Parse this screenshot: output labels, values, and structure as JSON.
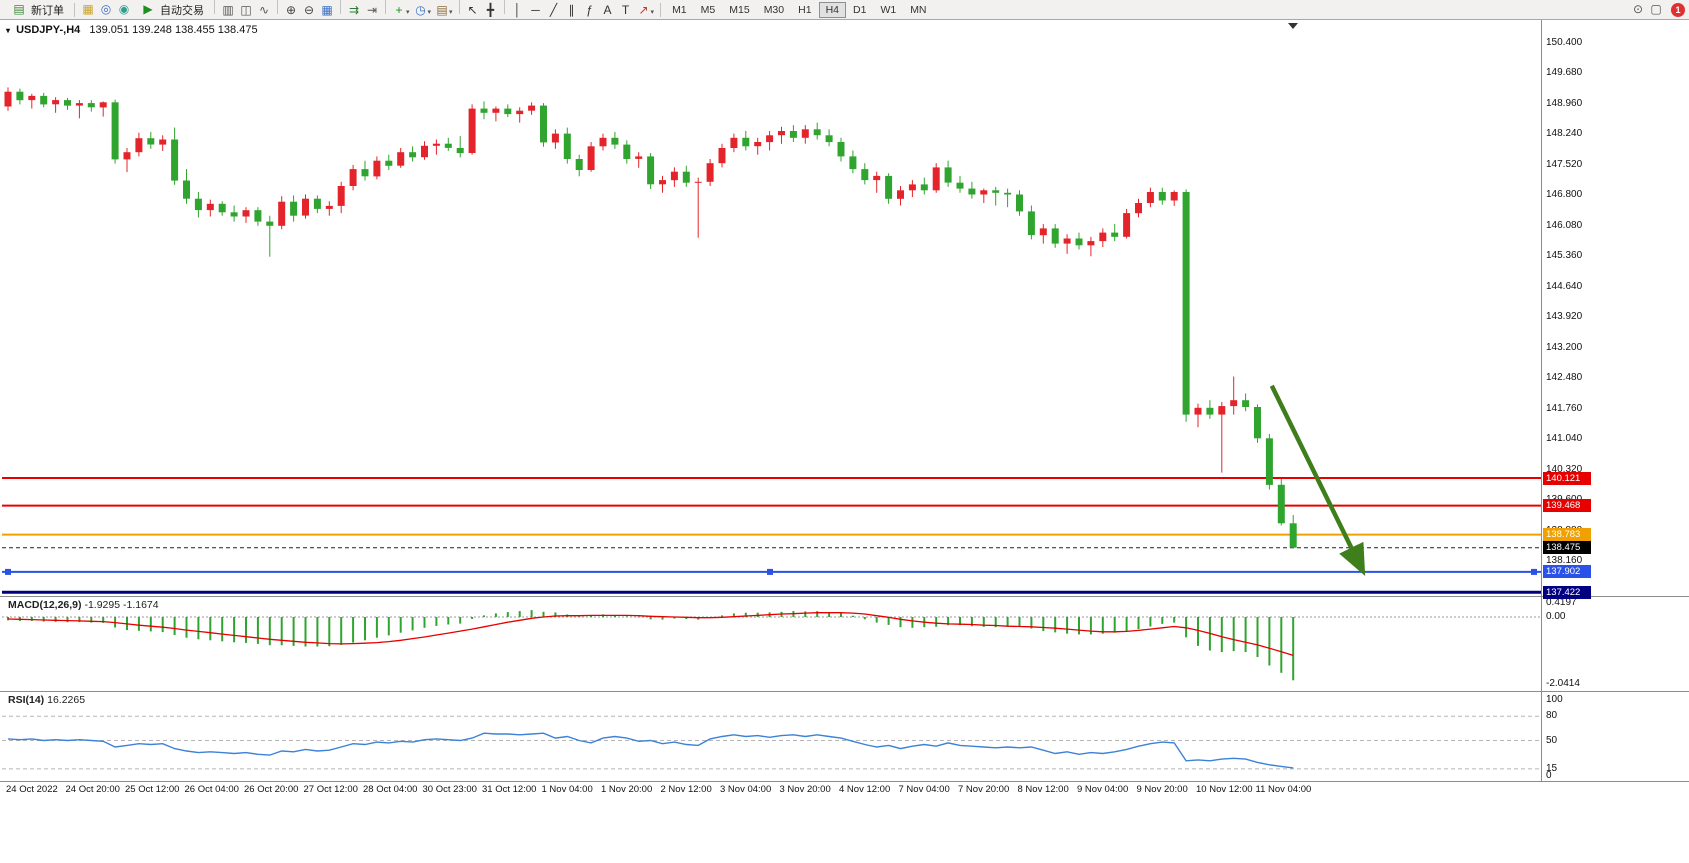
{
  "toolbar": {
    "new_order_label": "新订单",
    "autotrade_label": "自动交易",
    "left_icons": [
      {
        "name": "profiles-icon",
        "glyph": "▦",
        "color": "#c9a227"
      },
      {
        "name": "market-icon",
        "glyph": "◎",
        "color": "#3a6fc4"
      },
      {
        "name": "community-icon",
        "glyph": "◉",
        "color": "#2e9e8f"
      }
    ],
    "main_icons": [
      {
        "name": "bar-chart-icon",
        "glyph": "▥",
        "color": "#555",
        "sep_before": true
      },
      {
        "name": "candlestick-icon",
        "glyph": "◫",
        "color": "#555"
      },
      {
        "name": "line-chart-icon",
        "glyph": "∿",
        "color": "#555"
      },
      {
        "name": "zoom-in-icon",
        "glyph": "⊕",
        "color": "#444",
        "sep_before": true
      },
      {
        "name": "zoom-out-icon",
        "glyph": "⊖",
        "color": "#444"
      },
      {
        "name": "tile-windows-icon",
        "glyph": "▦",
        "color": "#3a6fc4"
      },
      {
        "name": "autoscroll-icon",
        "glyph": "⇉",
        "color": "#2e7d32",
        "sep_before": true
      },
      {
        "name": "chart-shift-icon",
        "glyph": "⇥",
        "color": "#555"
      },
      {
        "name": "indicators-icon",
        "glyph": "+",
        "color": "#1e8e1e",
        "caret": true,
        "sep_before": true
      },
      {
        "name": "periods-icon",
        "glyph": "◷",
        "color": "#3a6fc4",
        "caret": true
      },
      {
        "name": "templates-icon",
        "glyph": "▤",
        "color": "#8a6d3b",
        "caret": true
      },
      {
        "name": "cursor-icon",
        "glyph": "↖",
        "color": "#333",
        "sep_before": true
      },
      {
        "name": "crosshair-icon",
        "glyph": "╋",
        "color": "#333"
      },
      {
        "name": "vertical-line-icon",
        "glyph": "│",
        "color": "#333",
        "sep_before": true
      },
      {
        "name": "horizontal-line-icon",
        "glyph": "─",
        "color": "#333"
      },
      {
        "name": "trendline-icon",
        "glyph": "╱",
        "color": "#333"
      },
      {
        "name": "channel-icon",
        "glyph": "∥",
        "color": "#333"
      },
      {
        "name": "fibonacci-icon",
        "glyph": "ƒ",
        "color": "#333"
      },
      {
        "name": "text-icon",
        "glyph": "A",
        "color": "#333"
      },
      {
        "name": "text-label-icon",
        "glyph": "T",
        "color": "#333"
      },
      {
        "name": "arrows-icon",
        "glyph": "↗",
        "color": "#c23b22",
        "caret": true
      }
    ],
    "timeframes": [
      "M1",
      "M5",
      "M15",
      "M30",
      "H1",
      "H4",
      "D1",
      "W1",
      "MN"
    ],
    "active_timeframe": "H4",
    "right_icons": [
      {
        "name": "search-icon",
        "glyph": "⊙",
        "color": "#555"
      },
      {
        "name": "chat-icon",
        "glyph": "▢",
        "color": "#555"
      }
    ],
    "notification_count": "1"
  },
  "chart": {
    "dropdown_marker": "▾",
    "title_symbol": "USDJPY-,H4",
    "title_ohlc": "139.051 139.248 138.455 138.475"
  },
  "chart_data": {
    "type": "candlestick+indicators",
    "symbol_period": "USDJPY-,H4",
    "current_ohlc": {
      "open": 139.051,
      "high": 139.248,
      "low": 138.455,
      "close": 138.475
    },
    "colors": {
      "bull": "#e3242b",
      "bear": "#2fa42f",
      "macd_hist": "#2fa42f",
      "macd_signal": "#e60000",
      "rsi": "#3b82d9",
      "arrow": "#3e7f1c"
    },
    "price_axis": {
      "max": 150.4,
      "step": 0.72,
      "count": 18
    },
    "candles_per_label": 5,
    "time_labels": [
      "24 Oct 2022",
      "24 Oct 20:00",
      "25 Oct 12:00",
      "26 Oct 04:00",
      "26 Oct 20:00",
      "27 Oct 12:00",
      "28 Oct 04:00",
      "30 Oct 23:00",
      "31 Oct 12:00",
      "1 Nov 04:00",
      "1 Nov 20:00",
      "2 Nov 12:00",
      "3 Nov 04:00",
      "3 Nov 20:00",
      "4 Nov 12:00",
      "7 Nov 04:00",
      "7 Nov 20:00",
      "8 Nov 12:00",
      "9 Nov 04:00",
      "9 Nov 20:00",
      "10 Nov 12:00",
      "11 Nov 04:00"
    ],
    "candles": [
      [
        148.9,
        149.35,
        148.8,
        149.25
      ],
      [
        149.25,
        149.32,
        148.95,
        149.05
      ],
      [
        149.05,
        149.2,
        148.85,
        149.15
      ],
      [
        149.15,
        149.22,
        148.88,
        148.95
      ],
      [
        148.95,
        149.12,
        148.75,
        149.05
      ],
      [
        149.05,
        149.1,
        148.82,
        148.92
      ],
      [
        148.92,
        149.05,
        148.62,
        148.98
      ],
      [
        148.98,
        149.05,
        148.78,
        148.88
      ],
      [
        148.88,
        149.02,
        148.66,
        149.0
      ],
      [
        149.0,
        149.06,
        147.55,
        147.65
      ],
      [
        147.65,
        147.92,
        147.35,
        147.82
      ],
      [
        147.82,
        148.28,
        147.72,
        148.15
      ],
      [
        148.15,
        148.3,
        147.9,
        148.0
      ],
      [
        148.0,
        148.22,
        147.85,
        148.12
      ],
      [
        148.12,
        148.4,
        147.05,
        147.15
      ],
      [
        147.15,
        147.42,
        146.6,
        146.72
      ],
      [
        146.72,
        146.88,
        146.28,
        146.45
      ],
      [
        146.45,
        146.7,
        146.3,
        146.6
      ],
      [
        146.6,
        146.66,
        146.32,
        146.4
      ],
      [
        146.4,
        146.56,
        146.18,
        146.3
      ],
      [
        146.3,
        146.52,
        146.15,
        146.45
      ],
      [
        146.45,
        146.52,
        146.08,
        146.18
      ],
      [
        146.18,
        146.32,
        145.35,
        146.08
      ],
      [
        146.08,
        146.78,
        146.0,
        146.65
      ],
      [
        146.65,
        146.8,
        146.18,
        146.32
      ],
      [
        146.32,
        146.82,
        146.25,
        146.72
      ],
      [
        146.72,
        146.8,
        146.38,
        146.48
      ],
      [
        146.48,
        146.66,
        146.32,
        146.55
      ],
      [
        146.55,
        147.12,
        146.38,
        147.02
      ],
      [
        147.02,
        147.52,
        146.92,
        147.42
      ],
      [
        147.42,
        147.62,
        147.15,
        147.25
      ],
      [
        147.25,
        147.72,
        147.18,
        147.62
      ],
      [
        147.62,
        147.76,
        147.4,
        147.5
      ],
      [
        147.5,
        147.92,
        147.45,
        147.82
      ],
      [
        147.82,
        147.96,
        147.6,
        147.7
      ],
      [
        147.7,
        148.08,
        147.64,
        147.97
      ],
      [
        147.97,
        148.12,
        147.76,
        148.02
      ],
      [
        148.02,
        148.16,
        147.85,
        147.92
      ],
      [
        147.92,
        148.2,
        147.7,
        147.8
      ],
      [
        147.8,
        148.95,
        147.76,
        148.85
      ],
      [
        148.85,
        149.02,
        148.6,
        148.75
      ],
      [
        148.75,
        148.9,
        148.55,
        148.85
      ],
      [
        148.85,
        148.95,
        148.65,
        148.72
      ],
      [
        148.72,
        148.88,
        148.52,
        148.8
      ],
      [
        148.8,
        149.0,
        148.7,
        148.92
      ],
      [
        148.92,
        148.98,
        147.95,
        148.05
      ],
      [
        148.05,
        148.36,
        147.9,
        148.26
      ],
      [
        148.26,
        148.4,
        147.55,
        147.66
      ],
      [
        147.66,
        147.76,
        147.25,
        147.4
      ],
      [
        147.4,
        148.06,
        147.36,
        147.96
      ],
      [
        147.96,
        148.26,
        147.86,
        148.16
      ],
      [
        148.16,
        148.3,
        147.9,
        148.0
      ],
      [
        148.0,
        148.1,
        147.55,
        147.66
      ],
      [
        147.66,
        147.82,
        147.45,
        147.72
      ],
      [
        147.72,
        147.8,
        146.95,
        147.06
      ],
      [
        147.06,
        147.26,
        146.86,
        147.16
      ],
      [
        147.16,
        147.46,
        147.0,
        147.36
      ],
      [
        147.36,
        147.5,
        147.0,
        147.1
      ],
      [
        147.1,
        147.22,
        145.8,
        147.12
      ],
      [
        147.12,
        147.66,
        147.02,
        147.56
      ],
      [
        147.56,
        148.02,
        147.46,
        147.92
      ],
      [
        147.92,
        148.26,
        147.82,
        148.16
      ],
      [
        148.16,
        148.32,
        147.86,
        147.96
      ],
      [
        147.96,
        148.16,
        147.76,
        148.06
      ],
      [
        148.06,
        148.32,
        147.86,
        148.22
      ],
      [
        148.22,
        148.42,
        148.02,
        148.32
      ],
      [
        148.32,
        148.46,
        148.06,
        148.16
      ],
      [
        148.16,
        148.46,
        148.02,
        148.36
      ],
      [
        148.36,
        148.52,
        148.12,
        148.22
      ],
      [
        148.22,
        148.36,
        147.96,
        148.06
      ],
      [
        148.06,
        148.16,
        147.6,
        147.72
      ],
      [
        147.72,
        147.86,
        147.32,
        147.42
      ],
      [
        147.42,
        147.56,
        147.06,
        147.16
      ],
      [
        147.16,
        147.36,
        146.86,
        147.26
      ],
      [
        147.26,
        147.32,
        146.6,
        146.72
      ],
      [
        146.72,
        147.02,
        146.56,
        146.92
      ],
      [
        146.92,
        147.16,
        146.76,
        147.06
      ],
      [
        147.06,
        147.22,
        146.82,
        146.92
      ],
      [
        146.92,
        147.56,
        146.86,
        147.46
      ],
      [
        147.46,
        147.62,
        147.0,
        147.1
      ],
      [
        147.1,
        147.26,
        146.86,
        146.96
      ],
      [
        146.96,
        147.12,
        146.72,
        146.82
      ],
      [
        146.82,
        146.96,
        146.62,
        146.92
      ],
      [
        146.92,
        147.0,
        146.56,
        146.86
      ],
      [
        146.86,
        146.96,
        146.52,
        146.82
      ],
      [
        146.82,
        146.92,
        146.32,
        146.42
      ],
      [
        146.42,
        146.56,
        145.76,
        145.86
      ],
      [
        145.86,
        146.12,
        145.66,
        146.02
      ],
      [
        146.02,
        146.12,
        145.56,
        145.66
      ],
      [
        145.66,
        145.88,
        145.42,
        145.78
      ],
      [
        145.78,
        145.92,
        145.52,
        145.62
      ],
      [
        145.62,
        145.82,
        145.36,
        145.72
      ],
      [
        145.72,
        146.02,
        145.58,
        145.92
      ],
      [
        145.92,
        146.12,
        145.72,
        145.82
      ],
      [
        145.82,
        146.48,
        145.78,
        146.38
      ],
      [
        146.38,
        146.72,
        146.28,
        146.62
      ],
      [
        146.62,
        146.98,
        146.52,
        146.88
      ],
      [
        146.88,
        146.98,
        146.58,
        146.68
      ],
      [
        146.68,
        146.92,
        146.55,
        146.88
      ],
      [
        146.88,
        146.94,
        141.45,
        141.62
      ],
      [
        141.62,
        141.88,
        141.32,
        141.78
      ],
      [
        141.78,
        141.96,
        141.52,
        141.62
      ],
      [
        141.62,
        141.92,
        140.25,
        141.82
      ],
      [
        141.82,
        142.52,
        141.62,
        141.96
      ],
      [
        141.96,
        142.12,
        141.7,
        141.8
      ],
      [
        141.8,
        141.86,
        140.95,
        141.06
      ],
      [
        141.06,
        141.16,
        139.85,
        139.96
      ],
      [
        139.96,
        140.1,
        139.0,
        139.05
      ],
      [
        139.051,
        139.248,
        138.455,
        138.475
      ]
    ],
    "hlines": [
      {
        "price": 140.121,
        "badge": "140.121",
        "color": "#e60000",
        "width": 2
      },
      {
        "price": 139.468,
        "badge": "139.468",
        "color": "#e60000",
        "width": 2
      },
      {
        "price": 138.783,
        "badge": "138.783",
        "color": "#f0a000",
        "width": 2
      },
      {
        "price": 137.902,
        "badge": "137.902",
        "color": "#2a52e8",
        "width": 2,
        "handles": true
      },
      {
        "price": 137.422,
        "badge": "137.422",
        "color": "#000080",
        "width": 3
      }
    ],
    "current_price": 138.475,
    "current_price_label": "138.475",
    "macd": {
      "label": "MACD(12,26,9)",
      "values_text": "-1.9295 -1.1674",
      "scale_labels": [
        {
          "v": 0.4197,
          "t": "0.4197"
        },
        {
          "v": 0,
          "t": "0.00"
        },
        {
          "v": -2.0414,
          "t": "-2.0414"
        }
      ],
      "histogram": [
        -0.1,
        -0.12,
        -0.12,
        -0.14,
        -0.15,
        -0.16,
        -0.16,
        -0.17,
        -0.18,
        -0.32,
        -0.4,
        -0.42,
        -0.44,
        -0.46,
        -0.55,
        -0.63,
        -0.68,
        -0.71,
        -0.74,
        -0.77,
        -0.79,
        -0.82,
        -0.86,
        -0.86,
        -0.88,
        -0.9,
        -0.9,
        -0.89,
        -0.85,
        -0.78,
        -0.71,
        -0.63,
        -0.56,
        -0.48,
        -0.41,
        -0.33,
        -0.27,
        -0.23,
        -0.2,
        -0.06,
        0.05,
        0.11,
        0.15,
        0.18,
        0.21,
        0.16,
        0.14,
        0.08,
        0.02,
        0.05,
        0.08,
        0.06,
        0.02,
        -0.01,
        -0.07,
        -0.08,
        -0.05,
        -0.06,
        -0.08,
        -0.02,
        0.05,
        0.11,
        0.13,
        0.13,
        0.14,
        0.16,
        0.18,
        0.17,
        0.18,
        0.15,
        0.12,
        0.04,
        -0.07,
        -0.17,
        -0.24,
        -0.31,
        -0.33,
        -0.31,
        -0.3,
        -0.25,
        -0.25,
        -0.28,
        -0.3,
        -0.31,
        -0.3,
        -0.3,
        -0.35,
        -0.43,
        -0.47,
        -0.51,
        -0.53,
        -0.53,
        -0.51,
        -0.48,
        -0.44,
        -0.37,
        -0.29,
        -0.21,
        -0.17,
        -0.62,
        -0.88,
        -1.02,
        -1.07,
        -1.04,
        -1.07,
        -1.22,
        -1.48,
        -1.7,
        -1.93
      ],
      "signal": [
        -0.06,
        -0.07,
        -0.08,
        -0.09,
        -0.1,
        -0.11,
        -0.12,
        -0.13,
        -0.14,
        -0.17,
        -0.21,
        -0.25,
        -0.28,
        -0.31,
        -0.35,
        -0.4,
        -0.44,
        -0.48,
        -0.52,
        -0.56,
        -0.6,
        -0.64,
        -0.68,
        -0.71,
        -0.74,
        -0.77,
        -0.79,
        -0.81,
        -0.82,
        -0.81,
        -0.8,
        -0.78,
        -0.75,
        -0.71,
        -0.66,
        -0.61,
        -0.55,
        -0.49,
        -0.43,
        -0.37,
        -0.3,
        -0.23,
        -0.16,
        -0.1,
        -0.04,
        0.0,
        0.03,
        0.04,
        0.04,
        0.05,
        0.05,
        0.05,
        0.05,
        0.04,
        0.02,
        0.01,
        0.0,
        -0.01,
        -0.02,
        -0.02,
        -0.01,
        0.01,
        0.03,
        0.05,
        0.07,
        0.09,
        0.1,
        0.12,
        0.13,
        0.13,
        0.13,
        0.12,
        0.09,
        0.04,
        -0.01,
        -0.07,
        -0.12,
        -0.16,
        -0.19,
        -0.21,
        -0.22,
        -0.23,
        -0.25,
        -0.26,
        -0.28,
        -0.29,
        -0.3,
        -0.32,
        -0.34,
        -0.37,
        -0.4,
        -0.43,
        -0.45,
        -0.45,
        -0.44,
        -0.41,
        -0.37,
        -0.33,
        -0.29,
        -0.33,
        -0.41,
        -0.5,
        -0.6,
        -0.69,
        -0.77,
        -0.85,
        -0.95,
        -1.06,
        -1.17
      ]
    },
    "rsi": {
      "label": "RSI(14)",
      "value_text": "16.2265",
      "levels": [
        80,
        50,
        15
      ],
      "scale_labels": [
        {
          "v": 100,
          "t": "100"
        },
        {
          "v": 80,
          "t": "80"
        },
        {
          "v": 50,
          "t": "50"
        },
        {
          "v": 15,
          "t": "15"
        },
        {
          "v": 0,
          "t": "0"
        }
      ],
      "series": [
        52,
        51,
        52,
        50,
        51,
        50,
        51,
        50,
        49,
        42,
        44,
        46,
        45,
        46,
        40,
        37,
        35,
        36,
        35,
        34,
        35,
        33,
        32,
        37,
        36,
        39,
        37,
        38,
        42,
        46,
        45,
        48,
        47,
        49,
        48,
        51,
        52,
        51,
        50,
        53,
        59,
        58,
        58,
        57,
        58,
        59,
        53,
        55,
        50,
        47,
        53,
        55,
        53,
        49,
        50,
        46,
        48,
        45,
        44,
        52,
        55,
        57,
        55,
        56,
        54,
        56,
        57,
        55,
        57,
        55,
        53,
        49,
        45,
        42,
        44,
        40,
        43,
        45,
        43,
        47,
        44,
        43,
        42,
        41,
        42,
        41,
        42,
        38,
        34,
        36,
        33,
        35,
        34,
        36,
        39,
        43,
        46,
        48,
        47,
        25,
        26,
        25,
        27,
        28,
        27,
        23,
        20,
        18,
        16.2
      ]
    },
    "arrow": {
      "from_index": 106.2,
      "from_price": 142.3,
      "to_index": 113.8,
      "to_price": 137.95,
      "color": "#3e7f1c"
    }
  }
}
